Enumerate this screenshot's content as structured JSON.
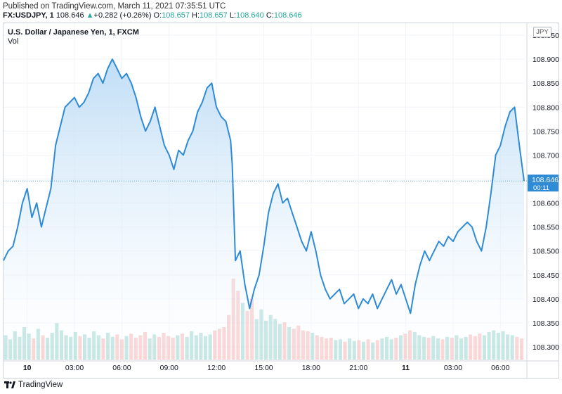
{
  "header": {
    "published": "Published on TradingView.com, March 11, 2021 07:35:51 UTC",
    "symbol": "FX:USDJPY, 1",
    "last": "108.646",
    "change_arrow": "▲",
    "change": "+0.282 (+0.26%)",
    "o_label": "O:",
    "o_value": "108.657",
    "h_label": "H:",
    "h_value": "108.657",
    "l_label": "L:",
    "l_value": "108.640",
    "c_label": "C:",
    "c_value": "108.646"
  },
  "legend": {
    "title": "U.S. Dollar / Japanese Yen, 1, FXCM",
    "vol": "Vol"
  },
  "currency_badge": "JPY",
  "footer": {
    "brand": "TradingView",
    "icon": "tradingview-logo-icon"
  },
  "colors": {
    "line": "#2f8bd6",
    "area_top": "#b9daf5",
    "area_bottom": "#ffffff",
    "vol_up": "#4fb3ab",
    "vol_down": "#ef8080",
    "price_label_bg": "#2f8bd6",
    "grid": "#f0f3fa"
  },
  "chart_data": {
    "type": "area",
    "title": "U.S. Dollar / Japanese Yen, 1, FXCM",
    "ylim": [
      108.275,
      108.975
    ],
    "y_ticks": [
      "108.950",
      "108.900",
      "108.850",
      "108.800",
      "108.750",
      "108.700",
      "108.650",
      "108.600",
      "108.550",
      "108.500",
      "108.450",
      "108.400",
      "108.350",
      "108.300"
    ],
    "x_tick_labels": [
      "10",
      "03:00",
      "06:00",
      "09:00",
      "12:00",
      "15:00",
      "18:00",
      "21:00",
      "11",
      "03:00",
      "06:00"
    ],
    "x_tick_hours": [
      0,
      3,
      6,
      9,
      12,
      15,
      18,
      21,
      24,
      27,
      30
    ],
    "x_range_hours": [
      -1.5,
      31.5
    ],
    "x_unit": "hours from March 10 00:00 UTC",
    "last_price": "108.646",
    "countdown": "00:11",
    "series": [
      {
        "name": "USDJPY",
        "x": [
          -1.5,
          -1.2,
          -0.9,
          -0.6,
          -0.3,
          0.0,
          0.3,
          0.6,
          0.9,
          1.2,
          1.5,
          1.8,
          2.1,
          2.4,
          2.7,
          3.0,
          3.3,
          3.6,
          3.9,
          4.2,
          4.5,
          4.8,
          5.1,
          5.4,
          5.7,
          6.0,
          6.3,
          6.6,
          6.9,
          7.2,
          7.5,
          7.8,
          8.1,
          8.4,
          8.7,
          9.0,
          9.3,
          9.6,
          9.9,
          10.2,
          10.5,
          10.8,
          11.1,
          11.4,
          11.7,
          12.0,
          12.3,
          12.6,
          12.9,
          13.0,
          13.2,
          13.5,
          13.8,
          14.1,
          14.4,
          14.7,
          15.0,
          15.3,
          15.6,
          15.9,
          16.2,
          16.5,
          16.8,
          17.1,
          17.4,
          17.7,
          18.0,
          18.3,
          18.6,
          18.9,
          19.2,
          19.5,
          19.8,
          20.1,
          20.4,
          20.7,
          21.0,
          21.3,
          21.6,
          21.9,
          22.2,
          22.5,
          22.8,
          23.1,
          23.4,
          23.7,
          24.0,
          24.3,
          24.6,
          24.9,
          25.2,
          25.5,
          25.8,
          26.1,
          26.4,
          26.7,
          27.0,
          27.3,
          27.6,
          27.9,
          28.2,
          28.5,
          28.8,
          29.1,
          29.4,
          29.7,
          30.0,
          30.3,
          30.6,
          30.9,
          31.2,
          31.5
        ],
        "y": [
          108.48,
          108.5,
          108.51,
          108.55,
          108.6,
          108.63,
          108.57,
          108.6,
          108.55,
          108.59,
          108.63,
          108.72,
          108.76,
          108.8,
          108.81,
          108.82,
          108.8,
          108.81,
          108.83,
          108.86,
          108.87,
          108.85,
          108.88,
          108.9,
          108.88,
          108.86,
          108.87,
          108.85,
          108.82,
          108.78,
          108.75,
          108.77,
          108.8,
          108.76,
          108.72,
          108.7,
          108.67,
          108.71,
          108.7,
          108.73,
          108.75,
          108.79,
          108.81,
          108.84,
          108.85,
          108.8,
          108.78,
          108.77,
          108.73,
          108.68,
          108.48,
          108.5,
          108.43,
          108.38,
          108.42,
          108.45,
          108.51,
          108.58,
          108.62,
          108.64,
          108.6,
          108.61,
          108.58,
          108.55,
          108.52,
          108.5,
          108.54,
          108.5,
          108.45,
          108.42,
          108.4,
          108.41,
          108.42,
          108.39,
          108.4,
          108.41,
          108.38,
          108.4,
          108.39,
          108.41,
          108.38,
          108.4,
          108.42,
          108.44,
          108.41,
          108.43,
          108.4,
          108.37,
          108.43,
          108.47,
          108.5,
          108.48,
          108.5,
          108.52,
          108.51,
          108.53,
          108.52,
          108.54,
          108.55,
          108.56,
          108.55,
          108.52,
          108.5,
          108.55,
          108.62,
          108.7,
          108.72,
          108.76,
          108.79,
          108.8,
          108.72,
          108.646
        ]
      }
    ],
    "volume": {
      "name": "Vol",
      "values": [
        0.3,
        0.25,
        0.35,
        0.28,
        0.4,
        0.32,
        0.26,
        0.38,
        0.3,
        0.27,
        0.33,
        0.45,
        0.36,
        0.3,
        0.28,
        0.34,
        0.29,
        0.31,
        0.27,
        0.35,
        0.3,
        0.26,
        0.33,
        0.28,
        0.31,
        0.25,
        0.29,
        0.32,
        0.27,
        0.3,
        0.34,
        0.26,
        0.31,
        0.28,
        0.33,
        0.29,
        0.27,
        0.3,
        0.32,
        0.28,
        0.35,
        0.3,
        0.33,
        0.29,
        0.31,
        0.36,
        0.38,
        0.4,
        0.55,
        1.0,
        0.85,
        0.7,
        0.6,
        0.75,
        0.5,
        0.62,
        0.48,
        0.55,
        0.5,
        0.44,
        0.46,
        0.4,
        0.38,
        0.42,
        0.36,
        0.35,
        0.33,
        0.3,
        0.28,
        0.26,
        0.27,
        0.24,
        0.25,
        0.22,
        0.26,
        0.23,
        0.24,
        0.22,
        0.25,
        0.21,
        0.24,
        0.26,
        0.28,
        0.25,
        0.27,
        0.3,
        0.32,
        0.36,
        0.34,
        0.3,
        0.28,
        0.27,
        0.29,
        0.26,
        0.25,
        0.28,
        0.27,
        0.3,
        0.26,
        0.28,
        0.31,
        0.29,
        0.32,
        0.3,
        0.34,
        0.36,
        0.33,
        0.35,
        0.31,
        0.3,
        0.28,
        0.26
      ]
    }
  }
}
